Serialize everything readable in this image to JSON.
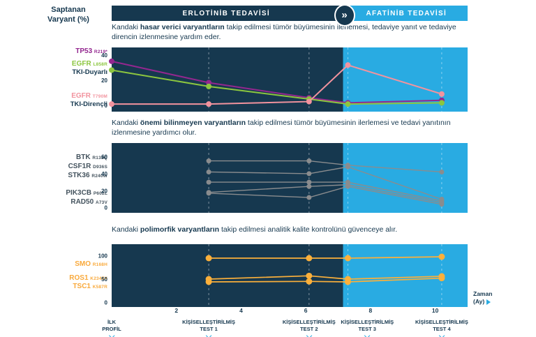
{
  "axis_title": {
    "line1": "Saptanan",
    "line2": "Varyant (%)"
  },
  "header": {
    "treatment1": {
      "label": "ERLOTİNİB TEDAVİSİ"
    },
    "treatment2": {
      "label": "AFATİNİB TEDAVİSİ"
    },
    "switch_icon": "chevron-double-right-circle-icon",
    "switch_icon_glyph": "»"
  },
  "colors": {
    "phase1_bg": "#16384F",
    "phase2_bg": "#29ABE2",
    "text": "#16384F",
    "timeline_arrow": "#29ABE2",
    "dashed_line": "rgba(255,255,255,0.45)"
  },
  "sections": [
    {
      "id": "damaging-variants",
      "description": [
        {
          "t": "Kandaki ",
          "b": false
        },
        {
          "t": "hasar verici varyantların",
          "b": true
        },
        {
          "t": " takip edilmesi tümör büyümesinin ilerlemesi, tedaviye yanıt ve tedaviye direncin izlenmesine yardım eder.",
          "b": false
        }
      ],
      "labels": [
        {
          "name": "gene-label-tp53",
          "gene": "TP53",
          "mutation": "R219*",
          "color": "#93278F"
        },
        {
          "name": "gene-label-egfr-l858r",
          "gene": "EGFR",
          "mutation": "L858R",
          "color": "#8CC63F"
        },
        {
          "name": "tki-sensitive-label",
          "text": "TKI-Duyarlı",
          "color": "#16384F"
        },
        {
          "name": "gene-label-egfr-t790m",
          "gene": "EGFR",
          "mutation": "T790M",
          "color": "#F2939E"
        },
        {
          "name": "tki-resistant-label",
          "text": "TKI-Dirençli",
          "color": "#16384F"
        }
      ]
    },
    {
      "id": "unknown-significance-variants",
      "description": [
        {
          "t": "Kandaki ",
          "b": false
        },
        {
          "t": "önemi bilinmeyen varyantların",
          "b": true
        },
        {
          "t": " takip edilmesi tümör büyümesinin ilerlemesi ve tedavi yanıtının izlenmesine yardımcı olur.",
          "b": false
        }
      ],
      "labels": [
        {
          "name": "gene-label-btk",
          "gene": "BTK",
          "mutation": "R133Q",
          "color": "#44535E"
        },
        {
          "name": "gene-label-csf1r",
          "gene": "CSF1R",
          "mutation": "D936S",
          "color": "#44535E"
        },
        {
          "name": "gene-label-stk36",
          "gene": "STK36",
          "mutation": "R240W",
          "color": "#44535E"
        },
        {
          "name": "gene-label-pik3cb",
          "gene": "PIK3CB",
          "mutation": "P602L",
          "color": "#44535E"
        },
        {
          "name": "gene-label-rad50",
          "gene": "RAD50",
          "mutation": "A73V",
          "color": "#44535E"
        }
      ]
    },
    {
      "id": "polymorphic-variants",
      "description": [
        {
          "t": "Kandaki ",
          "b": false
        },
        {
          "t": "polimorfik varyantların",
          "b": true
        },
        {
          "t": " takip edilmesi analitik kalite kontrolünü güvenceye alır.",
          "b": false
        }
      ],
      "labels": [
        {
          "name": "gene-label-smo",
          "gene": "SMO",
          "mutation": "R168H",
          "color": "#F9A93B"
        },
        {
          "name": "gene-label-ros1",
          "gene": "ROS1",
          "mutation": "K2345X",
          "color": "#F9A93B"
        },
        {
          "name": "gene-label-tsc1",
          "gene": "TSC1",
          "mutation": "K587R",
          "color": "#F9A93B"
        }
      ]
    }
  ],
  "chart_data": [
    {
      "type": "line",
      "title": "Hasar verici varyantlar",
      "x_max": 11,
      "split_month": 7.15,
      "dashed_months": [
        3,
        6.1,
        7.3,
        10.2
      ],
      "ylim": [
        -5,
        46
      ],
      "yticks": [
        0,
        20,
        40
      ],
      "series": [
        {
          "name": "TP53 R219*",
          "color": "#93278F",
          "x": [
            0,
            3,
            6.1,
            7.3,
            10.2
          ],
          "y": [
            35,
            18,
            6,
            2,
            4
          ]
        },
        {
          "name": "EGFR L858R",
          "color": "#8CC63F",
          "x": [
            0,
            3,
            6.1,
            7.3,
            10.2
          ],
          "y": [
            28,
            15,
            5,
            1,
            2
          ]
        },
        {
          "name": "EGFR T790M",
          "color": "#F2939E",
          "x": [
            0,
            3,
            6.1,
            7.3,
            10.2
          ],
          "y": [
            1,
            1,
            3,
            32,
            9
          ]
        }
      ]
    },
    {
      "type": "line",
      "title": "Önemi bilinmeyen varyantlar",
      "x_max": 11,
      "split_month": 7.15,
      "dashed_months": [
        3,
        6.1,
        7.3,
        10.2
      ],
      "ylim": [
        -6,
        76
      ],
      "yticks": [
        0,
        20,
        40,
        60
      ],
      "series": [
        {
          "name": "BTK R133Q",
          "color": "#8A8C8E",
          "x": [
            3,
            6.1,
            7.3,
            10.2
          ],
          "y": [
            55,
            55,
            50,
            42
          ]
        },
        {
          "name": "CSF1R D936S",
          "color": "#8A8C8E",
          "x": [
            3,
            6.1,
            7.3,
            10.2
          ],
          "y": [
            42,
            40,
            48,
            10
          ]
        },
        {
          "name": "STK36 R240W",
          "color": "#8A8C8E",
          "x": [
            3,
            6.1,
            7.3,
            10.2
          ],
          "y": [
            30,
            30,
            30,
            8
          ]
        },
        {
          "name": "PIK3CB P602L",
          "color": "#8A8C8E",
          "x": [
            3,
            6.1,
            7.3,
            10.2
          ],
          "y": [
            18,
            25,
            27,
            6
          ]
        },
        {
          "name": "RAD50 A73V",
          "color": "#8A8C8E",
          "x": [
            3,
            6.1,
            7.3,
            10.2
          ],
          "y": [
            17,
            12,
            25,
            4
          ]
        }
      ]
    },
    {
      "type": "line",
      "title": "Polimorfik varyantlar",
      "x_max": 11,
      "split_month": 7.15,
      "dashed_months": [
        3,
        6.1,
        7.3,
        10.2
      ],
      "ylim": [
        -10,
        125
      ],
      "yticks": [
        0,
        50,
        100
      ],
      "series": [
        {
          "name": "SMO R168H",
          "color": "#FBB03B",
          "x": [
            3,
            6.1,
            7.3,
            10.2
          ],
          "y": [
            95,
            95,
            95,
            98
          ]
        },
        {
          "name": "ROS1 K2345X",
          "color": "#FBB03B",
          "x": [
            3,
            6.1,
            7.3,
            10.2
          ],
          "y": [
            50,
            57,
            50,
            56
          ]
        },
        {
          "name": "TSC1 K587R",
          "color": "#FBB03B",
          "x": [
            3,
            6.1,
            7.3,
            10.2
          ],
          "y": [
            44,
            45,
            44,
            52
          ]
        }
      ]
    }
  ],
  "x_axis": {
    "ticks": [
      2,
      4,
      6,
      8,
      10
    ],
    "title_line1": "Zaman",
    "title_line2": "(Ay)"
  },
  "timeline": [
    {
      "name": "timeline-initial-profile",
      "line1": "İLK",
      "line2": "PROFİL",
      "month": 0
    },
    {
      "name": "timeline-test-1",
      "line1": "KİŞİSELLEŞTİRİLMİŞ",
      "line2": "TEST 1",
      "month": 3
    },
    {
      "name": "timeline-test-2",
      "line1": "KİŞİSELLEŞTİRİLMİŞ",
      "line2": "TEST 2",
      "month": 6.1
    },
    {
      "name": "timeline-test-3",
      "line1": "KİŞİSELLEŞTİRİLMİŞ",
      "line2": "TEST 3",
      "month": 7.9
    },
    {
      "name": "timeline-test-4",
      "line1": "KİŞİSELLEŞTİRİLMİŞ",
      "line2": "TEST 4",
      "month": 10.2
    }
  ]
}
